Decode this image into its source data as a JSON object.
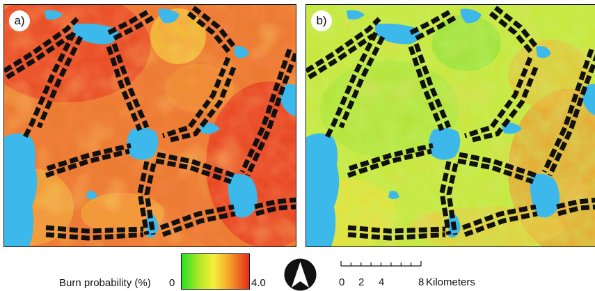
{
  "panels": [
    {
      "label": "a)",
      "scheme": "high"
    },
    {
      "label": "b)",
      "scheme": "low"
    }
  ],
  "legend": {
    "title": "Burn probability (%)",
    "min": "0",
    "max": "4.0",
    "colors": [
      "#28e022",
      "#b9ea2a",
      "#f7ee3c",
      "#f5a52a",
      "#e52b1c"
    ]
  },
  "north_arrow": {
    "icon": "north-arrow-icon"
  },
  "scale_bar": {
    "ticks": [
      "0",
      "2",
      "4",
      "8"
    ],
    "unit": "Kilometers"
  },
  "colors": {
    "water": "#3cb8ea",
    "fuel_break": "#111111"
  }
}
